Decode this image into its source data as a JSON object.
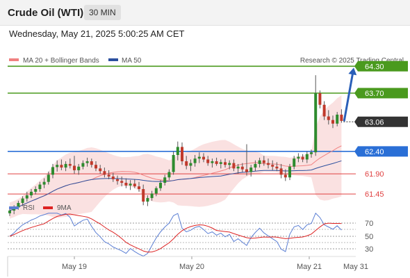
{
  "header": {
    "title": "Crude Oil (WTI)",
    "timeframe": "30 MIN"
  },
  "datetime": "Wednesday, May 21, 2025 5:00:25 AM CET",
  "legend": {
    "bollinger": "MA 20 + Bollinger Bands",
    "bollinger_color": "#f08080",
    "ma50": "MA 50",
    "ma50_color": "#2b4f9e"
  },
  "credit": "Research © 2025 Trading Central",
  "levels": [
    {
      "label": "64.30",
      "value": 64.3,
      "style": "green-box",
      "color": "#4a9a1e"
    },
    {
      "label": "63.70",
      "value": 63.7,
      "style": "green-box",
      "color": "#4a9a1e"
    },
    {
      "label": "63.06",
      "value": 63.06,
      "style": "dark-box",
      "color": "#333333"
    },
    {
      "label": "62.40",
      "value": 62.4,
      "style": "blue-box",
      "color": "#2a6fd6"
    },
    {
      "label": "61.90",
      "value": 61.9,
      "style": "red-text",
      "color": "#e04040"
    },
    {
      "label": "61.45",
      "value": 61.45,
      "style": "red-text",
      "color": "#e04040"
    }
  ],
  "rsi": {
    "legend_rsi": "RSI",
    "rsi_color": "#5b7fd4",
    "legend_ma": "9MA",
    "ma_color": "#dd2222",
    "ticks": [
      "70",
      "50",
      "30"
    ]
  },
  "x_axis": {
    "labels": [
      "May 19",
      "May 20",
      "May 21",
      "May 31"
    ]
  },
  "chart_data": {
    "type": "candlestick",
    "instrument": "Crude Oil (WTI)",
    "timeframe": "30 MIN",
    "y_range": [
      60.8,
      64.6
    ],
    "levels": [
      64.3,
      63.7,
      63.06,
      62.4,
      61.9,
      61.45
    ],
    "candles_ohlc": [
      [
        61.02,
        61.12,
        60.96,
        61.08
      ],
      [
        61.08,
        61.2,
        61.0,
        61.15
      ],
      [
        61.15,
        61.3,
        61.1,
        61.25
      ],
      [
        61.25,
        61.4,
        61.18,
        61.35
      ],
      [
        61.35,
        61.5,
        61.28,
        61.42
      ],
      [
        61.42,
        61.56,
        61.36,
        61.5
      ],
      [
        61.5,
        61.62,
        61.44,
        61.56
      ],
      [
        61.56,
        61.72,
        61.5,
        61.66
      ],
      [
        61.66,
        61.8,
        61.58,
        61.72
      ],
      [
        61.72,
        61.95,
        61.66,
        61.88
      ],
      [
        61.88,
        62.12,
        61.8,
        62.05
      ],
      [
        62.05,
        62.2,
        61.95,
        62.1
      ],
      [
        62.1,
        62.22,
        61.98,
        62.04
      ],
      [
        62.04,
        62.18,
        61.96,
        62.12
      ],
      [
        62.12,
        62.24,
        62.02,
        62.08
      ],
      [
        62.08,
        62.3,
        61.9,
        61.98
      ],
      [
        61.98,
        62.12,
        61.88,
        62.06
      ],
      [
        62.06,
        62.2,
        62.0,
        62.14
      ],
      [
        62.14,
        62.26,
        62.06,
        62.18
      ],
      [
        62.18,
        62.24,
        62.04,
        62.1
      ],
      [
        62.1,
        62.18,
        61.96,
        62.02
      ],
      [
        62.02,
        62.1,
        61.9,
        61.96
      ],
      [
        61.96,
        62.04,
        61.82,
        61.88
      ],
      [
        61.88,
        61.98,
        61.78,
        61.84
      ],
      [
        61.84,
        61.92,
        61.72,
        61.78
      ],
      [
        61.78,
        61.86,
        61.66,
        61.74
      ],
      [
        61.74,
        61.84,
        61.62,
        61.7
      ],
      [
        61.7,
        61.8,
        61.58,
        61.64
      ],
      [
        61.64,
        61.76,
        61.54,
        61.68
      ],
      [
        61.68,
        61.78,
        61.58,
        61.62
      ],
      [
        61.62,
        61.72,
        61.5,
        61.56
      ],
      [
        61.56,
        61.66,
        61.2,
        61.28
      ],
      [
        61.28,
        61.42,
        61.18,
        61.36
      ],
      [
        61.36,
        61.52,
        61.3,
        61.46
      ],
      [
        61.46,
        61.62,
        61.4,
        61.58
      ],
      [
        61.58,
        61.76,
        61.52,
        61.7
      ],
      [
        61.7,
        61.88,
        61.64,
        61.82
      ],
      [
        61.82,
        62.0,
        61.76,
        61.94
      ],
      [
        61.94,
        62.4,
        61.88,
        62.32
      ],
      [
        62.32,
        62.62,
        62.2,
        62.5
      ],
      [
        62.5,
        62.6,
        62.1,
        62.18
      ],
      [
        62.18,
        62.3,
        62.0,
        62.08
      ],
      [
        62.08,
        62.22,
        61.96,
        62.14
      ],
      [
        62.14,
        62.32,
        62.06,
        62.24
      ],
      [
        62.24,
        62.38,
        62.14,
        62.28
      ],
      [
        62.28,
        62.36,
        62.16,
        62.22
      ],
      [
        62.22,
        62.3,
        62.08,
        62.14
      ],
      [
        62.14,
        62.24,
        62.04,
        62.18
      ],
      [
        62.18,
        62.26,
        62.08,
        62.12
      ],
      [
        62.12,
        62.22,
        62.02,
        62.16
      ],
      [
        62.16,
        62.24,
        62.04,
        62.1
      ],
      [
        62.1,
        62.2,
        62.0,
        62.14
      ],
      [
        62.14,
        62.22,
        61.96,
        62.02
      ],
      [
        62.02,
        62.12,
        61.9,
        62.06
      ],
      [
        62.06,
        62.14,
        61.94,
        62.0
      ],
      [
        62.0,
        62.56,
        61.86,
        61.94
      ],
      [
        61.94,
        62.1,
        61.84,
        62.04
      ],
      [
        62.04,
        62.2,
        61.96,
        62.12
      ],
      [
        62.12,
        62.26,
        62.04,
        62.2
      ],
      [
        62.2,
        62.3,
        62.08,
        62.14
      ],
      [
        62.14,
        62.24,
        62.02,
        62.1
      ],
      [
        62.1,
        62.2,
        61.98,
        62.06
      ],
      [
        62.06,
        62.16,
        61.96,
        62.02
      ],
      [
        62.02,
        62.12,
        61.8,
        61.88
      ],
      [
        61.88,
        62.0,
        61.74,
        61.82
      ],
      [
        61.82,
        62.12,
        61.76,
        62.06
      ],
      [
        62.06,
        62.3,
        62.0,
        62.24
      ],
      [
        62.24,
        62.36,
        62.16,
        62.28
      ],
      [
        62.28,
        62.34,
        62.16,
        62.22
      ],
      [
        62.22,
        62.4,
        62.14,
        62.34
      ],
      [
        62.34,
        62.44,
        62.26,
        62.38
      ],
      [
        62.38,
        64.1,
        62.3,
        63.7
      ],
      [
        63.7,
        63.76,
        63.36,
        63.44
      ],
      [
        63.44,
        63.52,
        63.1,
        63.18
      ],
      [
        63.18,
        63.32,
        63.0,
        63.1
      ],
      [
        63.1,
        63.2,
        62.92,
        63.02
      ],
      [
        63.02,
        63.28,
        62.96,
        63.22
      ],
      [
        63.22,
        63.34,
        63.04,
        63.08
      ]
    ],
    "projection": {
      "from": 63.06,
      "to": 64.3
    }
  }
}
